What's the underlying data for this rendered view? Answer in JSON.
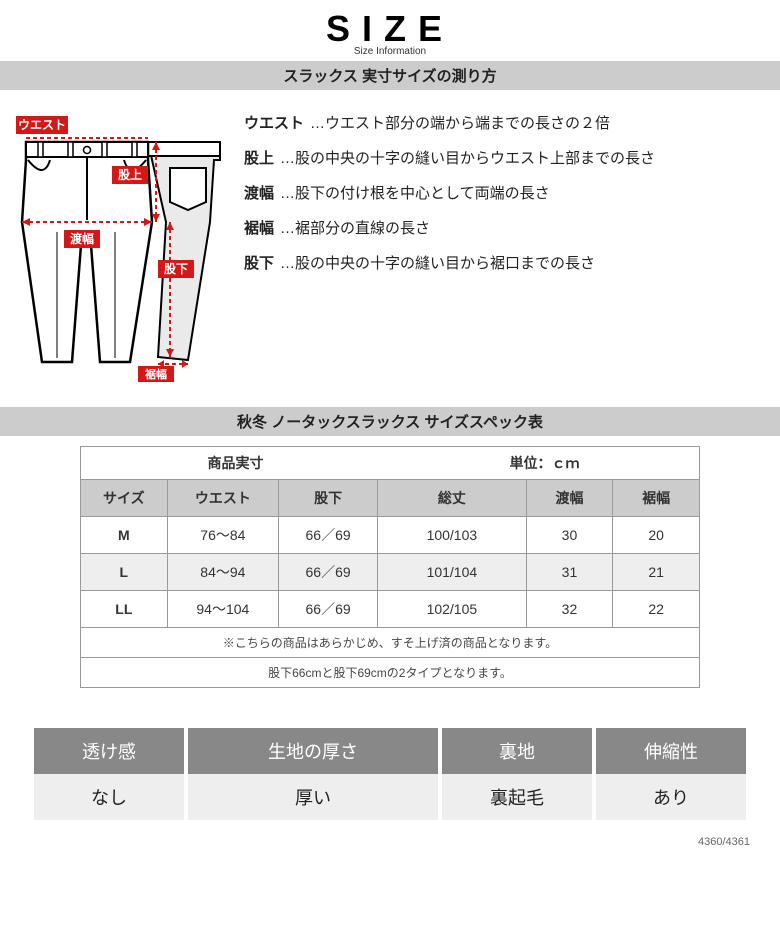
{
  "header": {
    "title": "SIZE",
    "subtitle": "Size Information"
  },
  "section1": {
    "bar": "スラックス 実寸サイズの測り方",
    "diagram": {
      "labels": {
        "waist": "ウエスト",
        "rise": "股上",
        "thigh": "渡幅",
        "inseam": "股下",
        "hem": "裾幅"
      },
      "colors": {
        "label_bg": "#d31818",
        "label_text": "#ffffff",
        "line": "#d31818",
        "outline": "#000000",
        "shade": "#eaeaea"
      }
    },
    "descriptions": [
      {
        "term": "ウエスト",
        "text": "…ウエスト部分の端から端までの長さの２倍"
      },
      {
        "term": "股上",
        "text": "…股の中央の十字の縫い目からウエスト上部までの長さ"
      },
      {
        "term": "渡幅",
        "text": "…股下の付け根を中心として両端の長さ"
      },
      {
        "term": "裾幅",
        "text": "…裾部分の直線の長さ"
      },
      {
        "term": "股下",
        "text": "…股の中央の十字の縫い目から裾口までの長さ"
      }
    ]
  },
  "section2": {
    "bar": "秋冬 ノータックスラックス サイズスペック表",
    "caption_left": "商品実寸",
    "caption_right": "単位：ｃｍ",
    "columns": [
      "サイズ",
      "ウエスト",
      "股下",
      "総丈",
      "渡幅",
      "裾幅"
    ],
    "col_widths": [
      "14%",
      "18%",
      "16%",
      "24%",
      "14%",
      "14%"
    ],
    "rows": [
      {
        "size": "M",
        "waist": "76～84",
        "inseam": "66／69",
        "length": "100/103",
        "thigh": "30",
        "hem": "20",
        "alt": false
      },
      {
        "size": "L",
        "waist": "84～94",
        "inseam": "66／69",
        "length": "101/104",
        "thigh": "31",
        "hem": "21",
        "alt": true
      },
      {
        "size": "LL",
        "waist": "94～104",
        "inseam": "66／69",
        "length": "102/105",
        "thigh": "32",
        "hem": "22",
        "alt": false
      }
    ],
    "note1": "※こちらの商品はあらかじめ、すそ上げ済の商品となります。",
    "note2": "股下66cmと股下69cmの2タイプとなります。"
  },
  "fabric": {
    "headers": [
      "透け感",
      "生地の厚さ",
      "裏地",
      "伸縮性"
    ],
    "values": [
      "なし",
      "厚い",
      "裏起毛",
      "あり"
    ]
  },
  "footer_code": "4360/4361",
  "colors": {
    "section_bar_bg": "#cccccc",
    "header_cell_bg": "#cccccc",
    "alt_row_bg": "#eeeeee",
    "fab_header_bg": "#888888",
    "fab_header_text": "#ffffff",
    "fab_value_bg": "#eeeeee",
    "border": "#999999"
  }
}
